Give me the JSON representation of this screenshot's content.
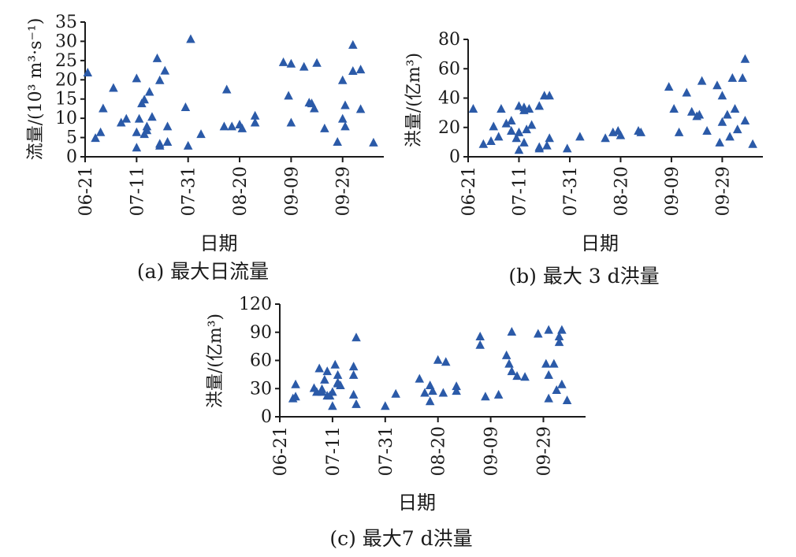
{
  "chart_data": [
    {
      "id": "a",
      "type": "scatter",
      "marker": "triangle",
      "color": "#2b5aa8",
      "caption": "(a) 最大日流量",
      "xlabel": "日期",
      "ylabel": "流量/(10³ m³·s⁻¹)",
      "ylim": [
        0,
        35
      ],
      "yticks": [
        "0",
        "5",
        "10",
        "15",
        "20",
        "25",
        "30",
        "35"
      ],
      "xlim": [
        "06-21",
        "10-15"
      ],
      "xticks": [
        "06-21",
        "07-11",
        "07-31",
        "08-20",
        "09-09",
        "09-29"
      ],
      "points": [
        {
          "x": "06-22",
          "y": 22
        },
        {
          "x": "06-25",
          "y": 5
        },
        {
          "x": "06-27",
          "y": 6.5
        },
        {
          "x": "06-28",
          "y": 12.7
        },
        {
          "x": "07-02",
          "y": 18
        },
        {
          "x": "07-05",
          "y": 9
        },
        {
          "x": "07-07",
          "y": 10
        },
        {
          "x": "07-11",
          "y": 6.5
        },
        {
          "x": "07-11",
          "y": 2.5
        },
        {
          "x": "07-11",
          "y": 20.5
        },
        {
          "x": "07-12",
          "y": 10
        },
        {
          "x": "07-13",
          "y": 14
        },
        {
          "x": "07-14",
          "y": 15
        },
        {
          "x": "07-14",
          "y": 6
        },
        {
          "x": "07-15",
          "y": 7
        },
        {
          "x": "07-15",
          "y": 8
        },
        {
          "x": "07-16",
          "y": 17
        },
        {
          "x": "07-17",
          "y": 10.5
        },
        {
          "x": "07-19",
          "y": 25.7
        },
        {
          "x": "07-20",
          "y": 20
        },
        {
          "x": "07-20",
          "y": 3.5
        },
        {
          "x": "07-20",
          "y": 3
        },
        {
          "x": "07-22",
          "y": 22.5
        },
        {
          "x": "07-23",
          "y": 8
        },
        {
          "x": "07-23",
          "y": 4
        },
        {
          "x": "07-30",
          "y": 13
        },
        {
          "x": "07-31",
          "y": 3
        },
        {
          "x": "08-01",
          "y": 30.7
        },
        {
          "x": "08-05",
          "y": 6
        },
        {
          "x": "08-14",
          "y": 8
        },
        {
          "x": "08-15",
          "y": 17.6
        },
        {
          "x": "08-17",
          "y": 8
        },
        {
          "x": "08-20",
          "y": 8.5
        },
        {
          "x": "08-21",
          "y": 7.5
        },
        {
          "x": "08-26",
          "y": 9
        },
        {
          "x": "08-26",
          "y": 10.8
        },
        {
          "x": "09-06",
          "y": 24.7
        },
        {
          "x": "09-08",
          "y": 16
        },
        {
          "x": "09-09",
          "y": 9
        },
        {
          "x": "09-09",
          "y": 24.3
        },
        {
          "x": "09-14",
          "y": 23.5
        },
        {
          "x": "09-16",
          "y": 14.2
        },
        {
          "x": "09-17",
          "y": 14
        },
        {
          "x": "09-18",
          "y": 12.7
        },
        {
          "x": "09-19",
          "y": 24.5
        },
        {
          "x": "09-22",
          "y": 7.5
        },
        {
          "x": "09-27",
          "y": 4
        },
        {
          "x": "09-29",
          "y": 10
        },
        {
          "x": "09-29",
          "y": 20
        },
        {
          "x": "09-30",
          "y": 13.5
        },
        {
          "x": "09-30",
          "y": 8
        },
        {
          "x": "10-03",
          "y": 29.2
        },
        {
          "x": "10-03",
          "y": 22.4
        },
        {
          "x": "10-06",
          "y": 22.8
        },
        {
          "x": "10-06",
          "y": 12.5
        },
        {
          "x": "10-11",
          "y": 3.8
        }
      ]
    },
    {
      "id": "b",
      "type": "scatter",
      "marker": "triangle",
      "color": "#2b5aa8",
      "caption": "(b) 最大 3 d洪量",
      "xlabel": "日期",
      "ylabel": "洪量/(亿m³)",
      "ylim": [
        0,
        80
      ],
      "yticks": [
        "0",
        "20",
        "40",
        "60",
        "80"
      ],
      "xlim": [
        "06-21",
        "10-15"
      ],
      "xticks": [
        "06-21",
        "07-11",
        "07-31",
        "08-20",
        "09-09",
        "09-29"
      ],
      "points": [
        {
          "x": "06-23",
          "y": 33
        },
        {
          "x": "06-27",
          "y": 9
        },
        {
          "x": "06-30",
          "y": 11
        },
        {
          "x": "07-01",
          "y": 21
        },
        {
          "x": "07-03",
          "y": 14
        },
        {
          "x": "07-04",
          "y": 33
        },
        {
          "x": "07-06",
          "y": 23
        },
        {
          "x": "07-08",
          "y": 25
        },
        {
          "x": "07-08",
          "y": 18
        },
        {
          "x": "07-10",
          "y": 13
        },
        {
          "x": "07-11",
          "y": 5
        },
        {
          "x": "07-11",
          "y": 35
        },
        {
          "x": "07-11",
          "y": 17
        },
        {
          "x": "07-13",
          "y": 34
        },
        {
          "x": "07-13",
          "y": 32
        },
        {
          "x": "07-13",
          "y": 10
        },
        {
          "x": "07-14",
          "y": 19
        },
        {
          "x": "07-15",
          "y": 33
        },
        {
          "x": "07-16",
          "y": 22
        },
        {
          "x": "07-19",
          "y": 35
        },
        {
          "x": "07-19",
          "y": 7
        },
        {
          "x": "07-19",
          "y": 6
        },
        {
          "x": "07-21",
          "y": 42
        },
        {
          "x": "07-22",
          "y": 8
        },
        {
          "x": "07-23",
          "y": 13
        },
        {
          "x": "07-23",
          "y": 42
        },
        {
          "x": "07-30",
          "y": 6
        },
        {
          "x": "08-04",
          "y": 14
        },
        {
          "x": "08-14",
          "y": 13
        },
        {
          "x": "08-17",
          "y": 17
        },
        {
          "x": "08-19",
          "y": 18
        },
        {
          "x": "08-20",
          "y": 15
        },
        {
          "x": "08-27",
          "y": 18
        },
        {
          "x": "08-28",
          "y": 17
        },
        {
          "x": "09-08",
          "y": 48
        },
        {
          "x": "09-10",
          "y": 33
        },
        {
          "x": "09-12",
          "y": 17
        },
        {
          "x": "09-15",
          "y": 44
        },
        {
          "x": "09-17",
          "y": 31
        },
        {
          "x": "09-19",
          "y": 28
        },
        {
          "x": "09-20",
          "y": 29
        },
        {
          "x": "09-21",
          "y": 52
        },
        {
          "x": "09-23",
          "y": 18
        },
        {
          "x": "09-27",
          "y": 49
        },
        {
          "x": "09-28",
          "y": 10
        },
        {
          "x": "09-29",
          "y": 24
        },
        {
          "x": "09-29",
          "y": 42
        },
        {
          "x": "10-01",
          "y": 29
        },
        {
          "x": "10-02",
          "y": 14
        },
        {
          "x": "10-03",
          "y": 54
        },
        {
          "x": "10-04",
          "y": 33
        },
        {
          "x": "10-05",
          "y": 19
        },
        {
          "x": "10-07",
          "y": 54
        },
        {
          "x": "10-08",
          "y": 67
        },
        {
          "x": "10-08",
          "y": 25
        },
        {
          "x": "10-11",
          "y": 9
        }
      ]
    },
    {
      "id": "c",
      "type": "scatter",
      "marker": "triangle",
      "color": "#2b5aa8",
      "caption": "(c) 最大7 d洪量",
      "xlabel": "日期",
      "ylabel": "洪量/(亿m³)",
      "ylim": [
        0,
        120
      ],
      "yticks": [
        "0",
        "30",
        "60",
        "90",
        "120"
      ],
      "xlim": [
        "06-21",
        "10-15"
      ],
      "xticks": [
        "06-21",
        "07-11",
        "07-31",
        "08-20",
        "09-09",
        "09-29"
      ],
      "points": [
        {
          "x": "06-26",
          "y": 20
        },
        {
          "x": "06-27",
          "y": 35
        },
        {
          "x": "06-27",
          "y": 22
        },
        {
          "x": "07-04",
          "y": 31
        },
        {
          "x": "07-05",
          "y": 27
        },
        {
          "x": "07-06",
          "y": 52
        },
        {
          "x": "07-07",
          "y": 30
        },
        {
          "x": "07-07",
          "y": 27
        },
        {
          "x": "07-08",
          "y": 40
        },
        {
          "x": "07-09",
          "y": 23
        },
        {
          "x": "07-09",
          "y": 49
        },
        {
          "x": "07-10",
          "y": 23
        },
        {
          "x": "07-11",
          "y": 27
        },
        {
          "x": "07-11",
          "y": 12
        },
        {
          "x": "07-12",
          "y": 56
        },
        {
          "x": "07-13",
          "y": 45
        },
        {
          "x": "07-13",
          "y": 37
        },
        {
          "x": "07-13",
          "y": 36
        },
        {
          "x": "07-14",
          "y": 34
        },
        {
          "x": "07-19",
          "y": 54
        },
        {
          "x": "07-19",
          "y": 45
        },
        {
          "x": "07-19",
          "y": 24
        },
        {
          "x": "07-20",
          "y": 85
        },
        {
          "x": "07-20",
          "y": 14
        },
        {
          "x": "07-31",
          "y": 12
        },
        {
          "x": "08-04",
          "y": 25
        },
        {
          "x": "08-13",
          "y": 41
        },
        {
          "x": "08-15",
          "y": 26
        },
        {
          "x": "08-17",
          "y": 34
        },
        {
          "x": "08-17",
          "y": 17
        },
        {
          "x": "08-18",
          "y": 28
        },
        {
          "x": "08-20",
          "y": 61
        },
        {
          "x": "08-22",
          "y": 26
        },
        {
          "x": "08-23",
          "y": 59
        },
        {
          "x": "08-27",
          "y": 33
        },
        {
          "x": "08-27",
          "y": 28
        },
        {
          "x": "09-05",
          "y": 86
        },
        {
          "x": "09-05",
          "y": 77
        },
        {
          "x": "09-07",
          "y": 22
        },
        {
          "x": "09-12",
          "y": 24
        },
        {
          "x": "09-15",
          "y": 66
        },
        {
          "x": "09-16",
          "y": 57
        },
        {
          "x": "09-17",
          "y": 91
        },
        {
          "x": "09-17",
          "y": 49
        },
        {
          "x": "09-19",
          "y": 44
        },
        {
          "x": "09-22",
          "y": 43
        },
        {
          "x": "09-27",
          "y": 89
        },
        {
          "x": "09-30",
          "y": 57
        },
        {
          "x": "10-01",
          "y": 45
        },
        {
          "x": "10-01",
          "y": 93
        },
        {
          "x": "10-01",
          "y": 20
        },
        {
          "x": "10-03",
          "y": 57
        },
        {
          "x": "10-04",
          "y": 29
        },
        {
          "x": "10-05",
          "y": 80
        },
        {
          "x": "10-05",
          "y": 86
        },
        {
          "x": "10-06",
          "y": 93
        },
        {
          "x": "10-06",
          "y": 35
        },
        {
          "x": "10-08",
          "y": 18
        }
      ]
    }
  ]
}
